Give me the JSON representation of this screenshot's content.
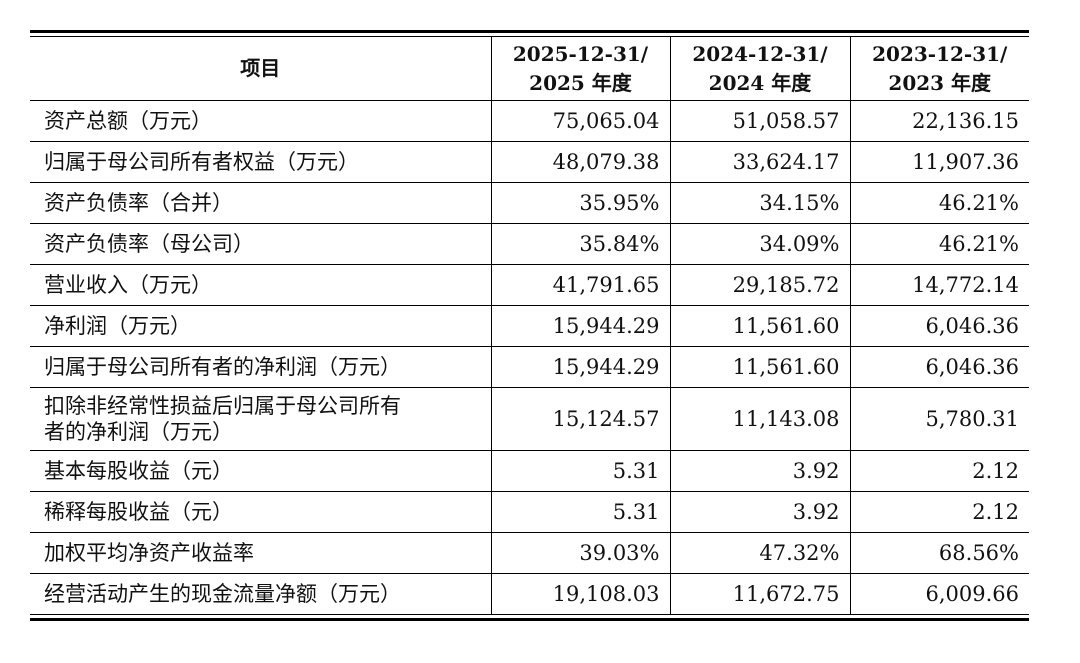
{
  "table": {
    "headers": [
      "项目",
      "2025-12-31/\n2025 年度",
      "2024-12-31/\n2024 年度",
      "2023-12-31/\n2023 年度"
    ],
    "header_lines": [
      [
        "项目"
      ],
      [
        "2025-12-31/",
        "2025 年度"
      ],
      [
        "2024-12-31/",
        "2024 年度"
      ],
      [
        "2023-12-31/",
        "2023 年度"
      ]
    ],
    "rows": [
      {
        "label": "资产总额（万元）",
        "values": [
          "75,065.04",
          "51,058.57",
          "22,136.15"
        ]
      },
      {
        "label": "归属于母公司所有者权益（万元）",
        "values": [
          "48,079.38",
          "33,624.17",
          "11,907.36"
        ]
      },
      {
        "label": "资产负债率（合并）",
        "values": [
          "35.95%",
          "34.15%",
          "46.21%"
        ]
      },
      {
        "label": "资产负债率（母公司）",
        "values": [
          "35.84%",
          "34.09%",
          "46.21%"
        ]
      },
      {
        "label": "营业收入（万元）",
        "values": [
          "41,791.65",
          "29,185.72",
          "14,772.14"
        ]
      },
      {
        "label": "净利润（万元）",
        "values": [
          "15,944.29",
          "11,561.60",
          "6,046.36"
        ]
      },
      {
        "label": "归属于母公司所有者的净利润（万元）",
        "values": [
          "15,944.29",
          "11,561.60",
          "6,046.36"
        ]
      },
      {
        "label": "扣除非经常性损益后归属于母公司所有者的净利润（万元）",
        "label_lines": [
          "扣除非经常性损益后归属于母公司所有",
          "者的净利润（万元）"
        ],
        "values": [
          "15,124.57",
          "11,143.08",
          "5,780.31"
        ]
      },
      {
        "label": "基本每股收益（元）",
        "values": [
          "5.31",
          "3.92",
          "2.12"
        ]
      },
      {
        "label": "稀释每股收益（元）",
        "values": [
          "5.31",
          "3.92",
          "2.12"
        ]
      },
      {
        "label": "加权平均净资产收益率",
        "values": [
          "39.03%",
          "47.32%",
          "68.56%"
        ]
      },
      {
        "label": "经营活动产生的现金流量净额（万元）",
        "values": [
          "19,108.03",
          "11,672.75",
          "6,009.66"
        ]
      }
    ]
  }
}
